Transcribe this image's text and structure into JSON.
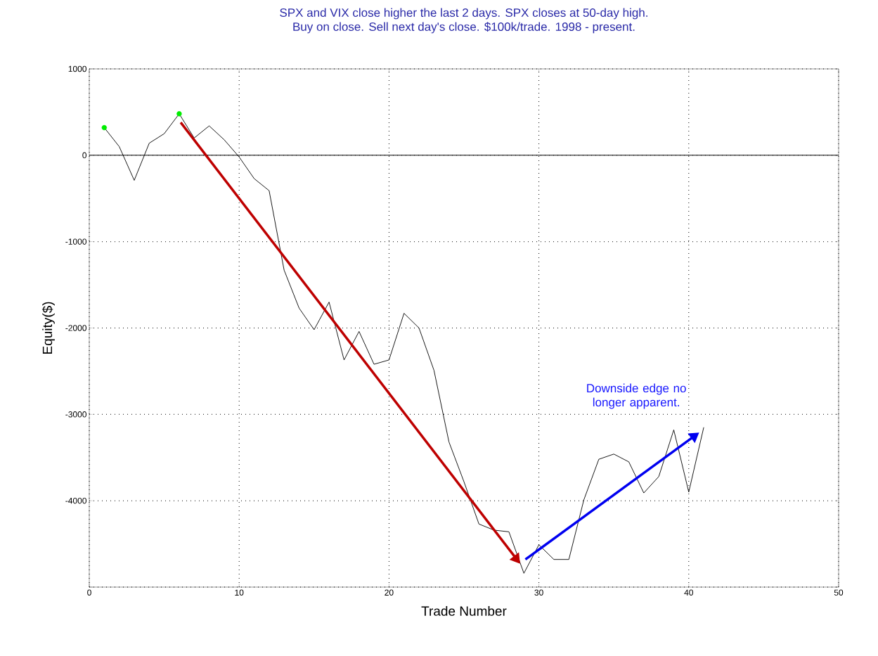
{
  "chart_data": {
    "type": "line",
    "title": "SPX and VIX close higher the last 2 days. SPX closes at 50-day high.",
    "subtitle": "Buy on close. Sell next day's close. $100k/trade. 1998 - present.",
    "xlabel": "Trade Number",
    "ylabel": "Equity($)",
    "annotations": [
      "Downside edge no longer apparent."
    ],
    "xlim": [
      0,
      50
    ],
    "xticks": [
      0,
      10,
      20,
      30,
      40,
      50
    ],
    "ylim": [
      -5000,
      1000
    ],
    "yticks": [
      {
        "value": -5000,
        "label": null
      },
      -4000,
      -3000,
      -2000,
      -1000,
      0,
      1000
    ],
    "grid": true,
    "marker": "none",
    "line_style": "solid",
    "ref_lines": [
      {
        "axis": "y",
        "value": 0,
        "color": "#000000",
        "line_style": "solid"
      }
    ],
    "series": [
      {
        "color": "#000000",
        "x": [
          1,
          2,
          3,
          4,
          5,
          6,
          7,
          8,
          9,
          10,
          11,
          12,
          13,
          14,
          15,
          16,
          17,
          18,
          19,
          20,
          21,
          22,
          23,
          24,
          25,
          26,
          27,
          28,
          29,
          30,
          31,
          32,
          33,
          34,
          35,
          36,
          37,
          38,
          39,
          40,
          41
        ],
        "values": [
          320,
          100,
          -290,
          140,
          250,
          480,
          200,
          340,
          180,
          -20,
          -270,
          -410,
          -1330,
          -1770,
          -2020,
          -1700,
          -2370,
          -2040,
          -2420,
          -2370,
          -1830,
          -2000,
          -2490,
          -3320,
          -3780,
          -4270,
          -4340,
          -4360,
          -4840,
          -4510,
          -4680,
          -4680,
          -3990,
          -3520,
          -3460,
          -3550,
          -3910,
          -3720,
          -3180,
          -3900,
          -3150
        ]
      },
      {
        "type": "scatter",
        "color": "#00ee00",
        "marker": "circle",
        "x": [
          1,
          6
        ],
        "values": [
          320,
          480
        ]
      }
    ]
  }
}
